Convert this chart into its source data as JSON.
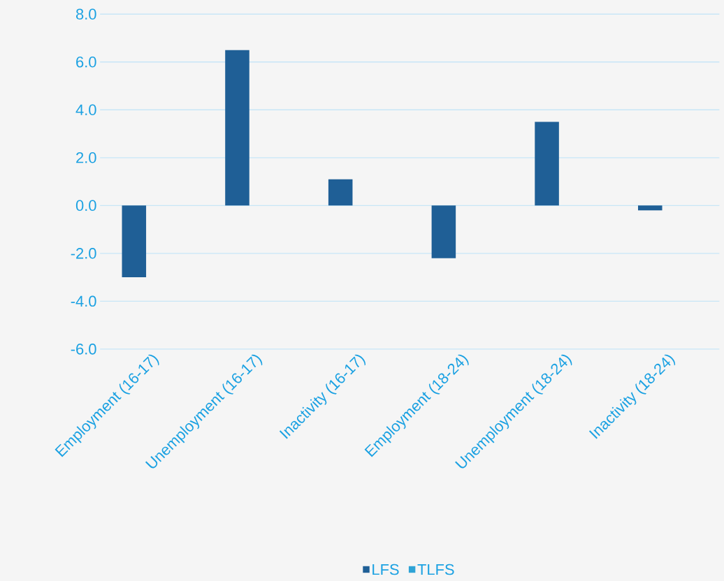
{
  "chart_data": {
    "type": "bar",
    "categories": [
      "Employment (16-17)",
      "Unemployment (16-17)",
      "Inactivity (16-17)",
      "Employment (18-24)",
      "Unemployment (18-24)",
      "Inactivity (18-24)"
    ],
    "series": [
      {
        "name": "LFS",
        "color": "#1f5f96",
        "values": [
          -3.0,
          6.5,
          1.1,
          -2.2,
          3.5,
          -0.2
        ]
      },
      {
        "name": "TLFS",
        "color": "#2ea3d6",
        "values": [
          null,
          null,
          null,
          null,
          null,
          null
        ]
      }
    ],
    "ylim": [
      -6,
      8
    ],
    "yticks": [
      {
        "value": -6,
        "label": "-6.0"
      },
      {
        "value": -4,
        "label": "-4.0"
      },
      {
        "value": -2,
        "label": "-2.0"
      },
      {
        "value": 0,
        "label": "0.0"
      },
      {
        "value": 2,
        "label": "2.0"
      },
      {
        "value": 4,
        "label": "4.0"
      },
      {
        "value": 6,
        "label": "6.0"
      },
      {
        "value": 8,
        "label": "8.0"
      }
    ],
    "grid": "y",
    "legend": "bottom"
  }
}
